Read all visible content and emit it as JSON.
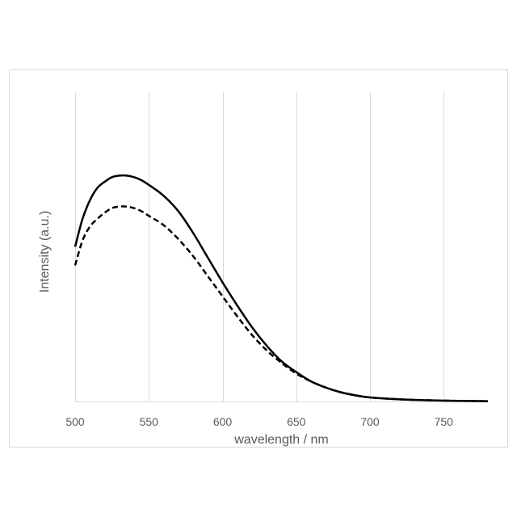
{
  "chart_data": {
    "type": "line",
    "title": "",
    "xlabel": "wavelength  / nm",
    "ylabel": "Intensity (a.u.)",
    "xlim": [
      500,
      780
    ],
    "ylim": [
      0,
      1.0
    ],
    "x_ticks": [
      500,
      550,
      600,
      650,
      700,
      750
    ],
    "x_tick_labels": [
      "500",
      "550",
      "600",
      "650",
      "700",
      "750"
    ],
    "grid": "vertical",
    "legend": "none",
    "series": [
      {
        "style": "solid",
        "color": "#000000",
        "x": [
          500,
          505,
          510,
          515,
          520,
          525,
          530,
          535,
          540,
          545,
          550,
          560,
          570,
          580,
          590,
          600,
          610,
          620,
          630,
          640,
          650,
          660,
          670,
          680,
          690,
          700,
          720,
          740,
          760,
          780
        ],
        "y": [
          0.5,
          0.59,
          0.65,
          0.69,
          0.71,
          0.725,
          0.73,
          0.73,
          0.725,
          0.715,
          0.7,
          0.665,
          0.615,
          0.545,
          0.465,
          0.385,
          0.31,
          0.24,
          0.18,
          0.13,
          0.095,
          0.065,
          0.045,
          0.03,
          0.02,
          0.013,
          0.007,
          0.004,
          0.002,
          0.001
        ]
      },
      {
        "style": "dashed",
        "color": "#000000",
        "x": [
          500,
          505,
          510,
          515,
          520,
          525,
          530,
          535,
          540,
          545,
          550,
          560,
          570,
          580,
          590,
          600,
          610,
          620,
          630,
          640,
          650,
          660,
          670,
          680,
          690,
          700,
          720,
          740,
          760,
          780
        ],
        "y": [
          0.44,
          0.52,
          0.565,
          0.59,
          0.61,
          0.625,
          0.63,
          0.63,
          0.625,
          0.615,
          0.6,
          0.57,
          0.525,
          0.47,
          0.405,
          0.34,
          0.275,
          0.215,
          0.165,
          0.125,
          0.09,
          0.065,
          0.045,
          0.03,
          0.02,
          0.013,
          0.007,
          0.004,
          0.002,
          0.001
        ]
      }
    ]
  }
}
